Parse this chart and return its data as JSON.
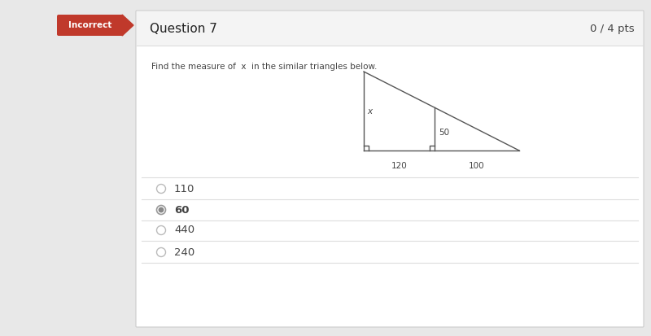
{
  "bg_color": "#e8e8e8",
  "card_color": "#ffffff",
  "header_bg": "#f0f0f0",
  "header_color": "#c0392b",
  "header_text": "Incorrect",
  "question_number": "Question 7",
  "score": "0 / 4 pts",
  "instruction": "Find the measure of  x  in the similar triangles below.",
  "triangle": {
    "label_x": "x",
    "label_120": "120",
    "label_100": "100",
    "label_50": "50"
  },
  "options": [
    {
      "value": "110",
      "selected": false
    },
    {
      "value": "60",
      "selected": true
    },
    {
      "value": "440",
      "selected": false
    },
    {
      "value": "240",
      "selected": false
    }
  ],
  "divider_color": "#dddddd",
  "text_color": "#444444",
  "title_fontsize": 11,
  "option_fontsize": 9.5,
  "instruction_fontsize": 7.5,
  "score_fontsize": 9.5
}
